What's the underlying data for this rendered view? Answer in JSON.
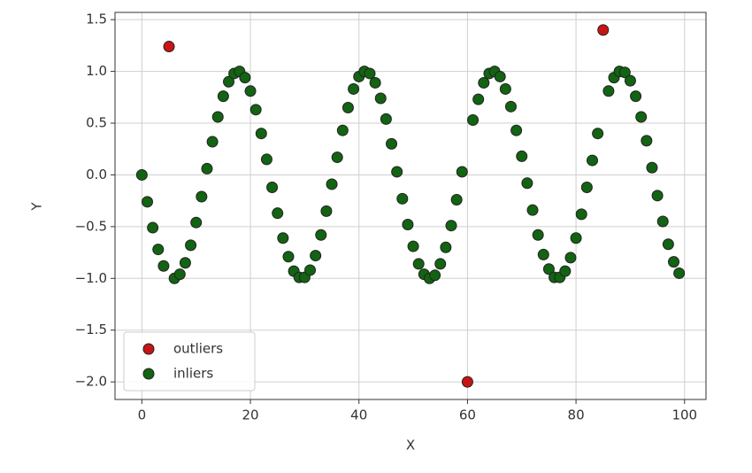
{
  "chart_data": {
    "type": "scatter",
    "x_label": "X",
    "y_label": "Y",
    "xlim": [
      -4.95,
      103.95
    ],
    "ylim": [
      -2.17,
      1.57
    ],
    "xticks": [
      0,
      20,
      40,
      60,
      80,
      100
    ],
    "yticks": [
      {
        "value": -2.0,
        "label": "−2.0"
      },
      {
        "value": -1.5,
        "label": "−1.5"
      },
      {
        "value": -1.0,
        "label": "−1.0"
      },
      {
        "value": -0.5,
        "label": "−0.5"
      },
      {
        "value": 0,
        "label": "0.0"
      },
      0.5,
      {
        "value": 1.0,
        "label": "1.0"
      },
      1.5
    ],
    "grid": true,
    "legend": "lower left",
    "series": [
      {
        "name": "outliers",
        "color": "#c81414",
        "x": [
          5,
          60,
          85
        ],
        "values": [
          1.24,
          -2.0,
          1.4
        ]
      },
      {
        "name": "inliers",
        "color": "#126312",
        "x": [
          0,
          1,
          2,
          3,
          4,
          6,
          7,
          8,
          9,
          10,
          11,
          12,
          13,
          14,
          15,
          16,
          17,
          18,
          19,
          20,
          21,
          22,
          23,
          24,
          25,
          26,
          27,
          28,
          29,
          30,
          31,
          32,
          33,
          34,
          35,
          36,
          37,
          38,
          39,
          40,
          41,
          42,
          43,
          44,
          45,
          46,
          47,
          48,
          49,
          50,
          51,
          52,
          53,
          54,
          55,
          56,
          57,
          58,
          59,
          61,
          62,
          63,
          64,
          65,
          66,
          67,
          68,
          69,
          70,
          71,
          72,
          73,
          74,
          75,
          76,
          77,
          78,
          79,
          80,
          81,
          82,
          83,
          84,
          86,
          87,
          88,
          89,
          90,
          91,
          92,
          93,
          94,
          95,
          96,
          97,
          98,
          99
        ],
        "values": [
          0,
          -0.26,
          -0.51,
          -0.72,
          -0.88,
          -1.0,
          -0.96,
          -0.85,
          -0.68,
          -0.46,
          -0.21,
          0.06,
          0.32,
          0.56,
          0.76,
          0.9,
          0.98,
          1.0,
          0.94,
          0.81,
          0.63,
          0.4,
          0.15,
          -0.12,
          -0.37,
          -0.61,
          -0.79,
          -0.93,
          -0.99,
          -0.99,
          -0.92,
          -0.78,
          -0.58,
          -0.35,
          -0.09,
          0.17,
          0.43,
          0.65,
          0.83,
          0.95,
          1.0,
          0.98,
          0.89,
          0.74,
          0.54,
          0.3,
          0.03,
          -0.23,
          -0.48,
          -0.69,
          -0.86,
          -0.96,
          -1.0,
          -0.97,
          -0.86,
          -0.7,
          -0.49,
          -0.24,
          0.03,
          0.53,
          0.73,
          0.89,
          0.98,
          1.0,
          0.95,
          0.83,
          0.66,
          0.43,
          0.18,
          -0.08,
          -0.34,
          -0.58,
          -0.77,
          -0.91,
          -0.99,
          -0.99,
          -0.93,
          -0.8,
          -0.61,
          -0.38,
          -0.12,
          0.14,
          0.4,
          0.81,
          0.94,
          1.0,
          0.99,
          0.91,
          0.76,
          0.56,
          0.33,
          0.07,
          -0.2,
          -0.45,
          -0.67,
          -0.84,
          -0.95
        ]
      }
    ]
  }
}
